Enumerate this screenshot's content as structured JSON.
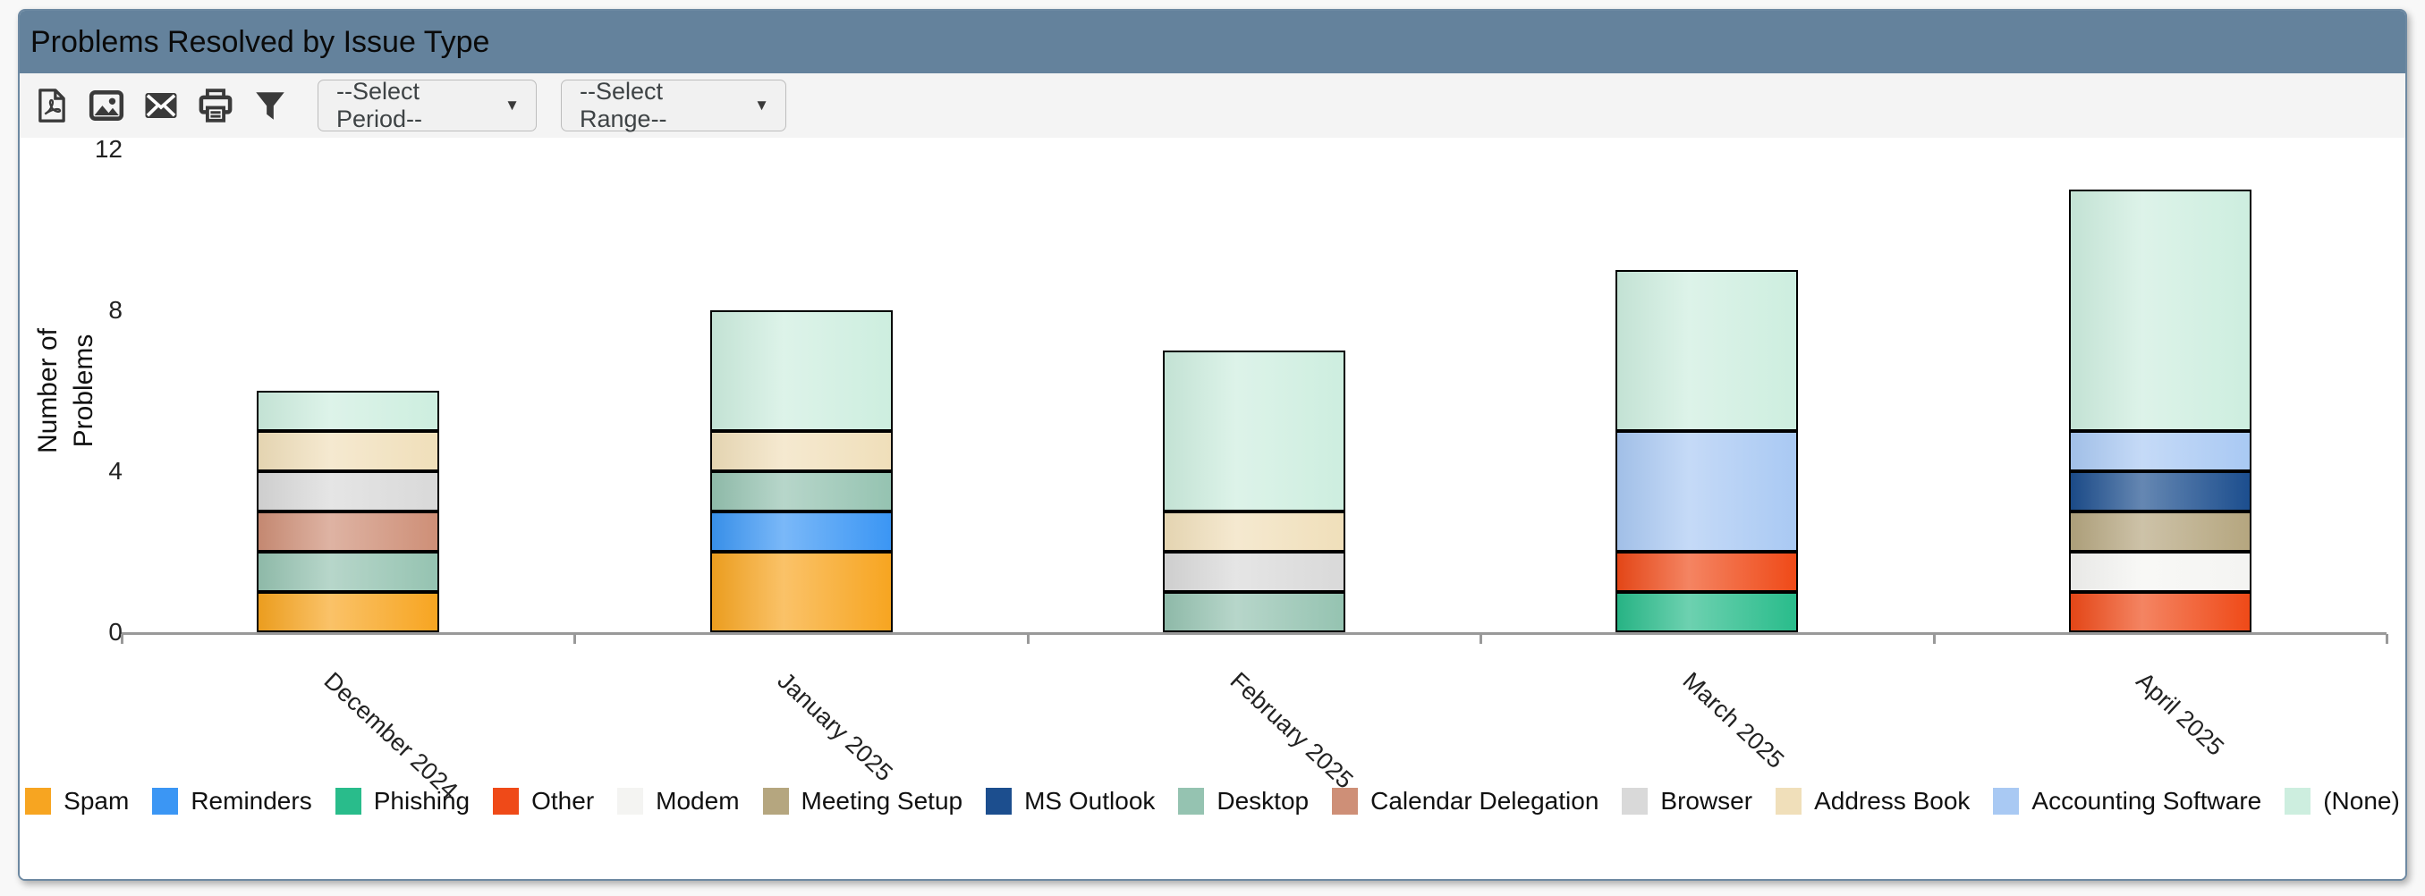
{
  "window": {
    "title": "Problems Resolved by Issue Type"
  },
  "toolbar": {
    "icons": [
      {
        "name": "pdf-export-icon"
      },
      {
        "name": "image-export-icon"
      },
      {
        "name": "email-icon"
      },
      {
        "name": "print-icon"
      },
      {
        "name": "filter-icon"
      }
    ],
    "period_dropdown": {
      "value": "--Select Period--",
      "caret": "▼"
    },
    "range_dropdown": {
      "value": "--Select Range--",
      "caret": "▼"
    }
  },
  "colors": {
    "header_bg": "#64829c",
    "panel_border": "#6d89a2",
    "toolbar_bg": "#f4f4f4",
    "axis_line": "#999999",
    "segment_border": "#000000"
  },
  "chart_data": {
    "type": "bar",
    "stacked": true,
    "title": "Problems Resolved by Issue Type",
    "xlabel": "",
    "ylabel": "Number of Problems",
    "ylim": [
      0,
      12
    ],
    "yticks": [
      0,
      4,
      8,
      12
    ],
    "grid": false,
    "legend_position": "bottom",
    "categories": [
      "December 2024",
      "January 2025",
      "February 2025",
      "March 2025",
      "April 2025"
    ],
    "bar_totals": [
      6,
      8,
      7,
      9,
      11
    ],
    "series": [
      {
        "name": "Spam",
        "color": "#F7A521",
        "values": [
          1,
          2,
          0,
          0,
          0
        ]
      },
      {
        "name": "Reminders",
        "color": "#3B96F4",
        "values": [
          0,
          1,
          0,
          0,
          0
        ]
      },
      {
        "name": "Phishing",
        "color": "#29BC8B",
        "values": [
          0,
          0,
          0,
          1,
          0
        ]
      },
      {
        "name": "Other",
        "color": "#EF4A18",
        "values": [
          0,
          0,
          0,
          1,
          1
        ]
      },
      {
        "name": "Modem",
        "color": "#F4F4F2",
        "values": [
          0,
          0,
          0,
          0,
          1
        ]
      },
      {
        "name": "Meeting Setup",
        "color": "#B5A67F",
        "values": [
          0,
          0,
          0,
          0,
          1
        ]
      },
      {
        "name": "MS Outlook",
        "color": "#1C4E8E",
        "values": [
          0,
          0,
          0,
          0,
          1
        ]
      },
      {
        "name": "Desktop",
        "color": "#95C3B1",
        "values": [
          1,
          1,
          1,
          0,
          0
        ]
      },
      {
        "name": "Calendar Delegation",
        "color": "#CE8F77",
        "values": [
          1,
          0,
          0,
          0,
          0
        ]
      },
      {
        "name": "Browser",
        "color": "#D9D9D9",
        "values": [
          1,
          0,
          1,
          0,
          0
        ]
      },
      {
        "name": "Address Book",
        "color": "#F0DFBA",
        "values": [
          1,
          1,
          1,
          0,
          0
        ]
      },
      {
        "name": "Accounting Software",
        "color": "#A9C9F3",
        "values": [
          0,
          0,
          0,
          3,
          1
        ]
      },
      {
        "name": "(None)",
        "color": "#CDEEDF",
        "values": [
          1,
          3,
          4,
          4,
          6
        ]
      }
    ]
  }
}
